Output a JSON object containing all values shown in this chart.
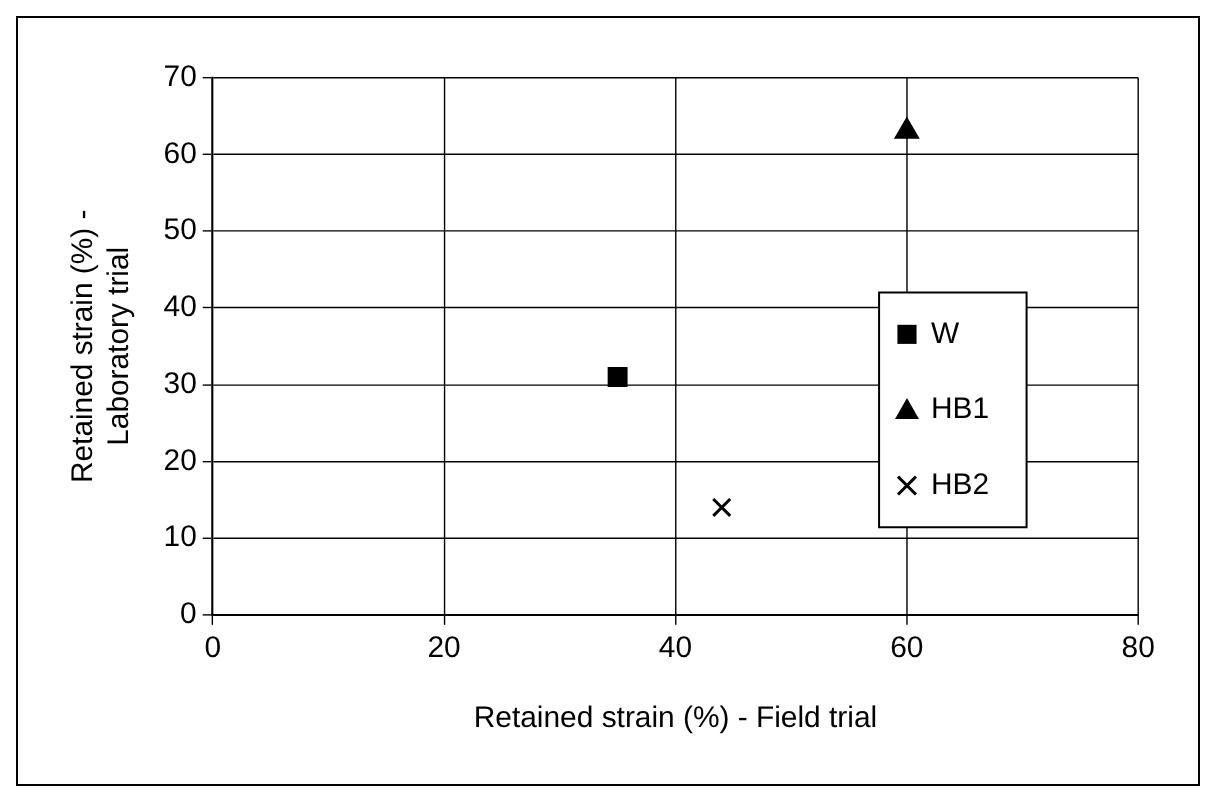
{
  "chart_data": {
    "type": "scatter",
    "xlabel": "Retained strain (%) - Field trial",
    "ylabel": "Retained strain (%) - Laboratory trial",
    "xlim": [
      0,
      80
    ],
    "xticks": [
      0,
      20,
      40,
      60,
      80
    ],
    "ylim": [
      0,
      70
    ],
    "yticks": [
      0,
      10,
      20,
      30,
      40,
      50,
      60,
      70
    ],
    "grid": true,
    "legend": "right",
    "series": [
      {
        "name": "W",
        "color": "#000000",
        "marker": "square",
        "x": [
          35
        ],
        "values": [
          31
        ]
      },
      {
        "name": "HB1",
        "color": "#000000",
        "marker": "triangle",
        "x": [
          60
        ],
        "values": [
          63
        ]
      },
      {
        "name": "HB2",
        "color": "#000000",
        "marker": "cross",
        "x": [
          44
        ],
        "values": [
          14
        ]
      }
    ]
  }
}
